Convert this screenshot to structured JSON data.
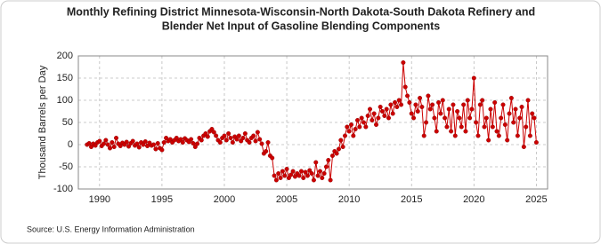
{
  "chart_data": {
    "type": "line",
    "title": [
      "Monthly Refining District Minnesota-Wisconsin-North Dakota-South Dakota Refinery and",
      "Blender Net Input of Gasoline Blending Components"
    ],
    "y_label": "Thousand Barrels per Day",
    "source": "Source: U.S. Energy Information Administration",
    "color": "#cc0000",
    "grid": true,
    "xlim": [
      1988.3,
      2025.9
    ],
    "xticks": [
      1990,
      1995,
      2000,
      2005,
      2010,
      2015,
      2020,
      2025
    ],
    "ylim": [
      -100,
      200
    ],
    "yticks": [
      -100,
      -50,
      0,
      50,
      100,
      150,
      200
    ],
    "x": [
      1989,
      1989.167,
      1989.333,
      1989.5,
      1989.667,
      1989.833,
      1990,
      1990.167,
      1990.333,
      1990.5,
      1990.667,
      1990.833,
      1991,
      1991.167,
      1991.333,
      1991.5,
      1991.667,
      1991.833,
      1992,
      1992.167,
      1992.333,
      1992.5,
      1992.667,
      1992.833,
      1993,
      1993.167,
      1993.333,
      1993.5,
      1993.667,
      1993.833,
      1994,
      1994.167,
      1994.333,
      1994.5,
      1994.667,
      1994.833,
      1995,
      1995.167,
      1995.333,
      1995.5,
      1995.667,
      1995.833,
      1996,
      1996.167,
      1996.333,
      1996.5,
      1996.667,
      1996.833,
      1997,
      1997.167,
      1997.333,
      1997.5,
      1997.667,
      1997.833,
      1998,
      1998.167,
      1998.333,
      1998.5,
      1998.667,
      1998.833,
      1999,
      1999.167,
      1999.333,
      1999.5,
      1999.667,
      1999.833,
      2000,
      2000.167,
      2000.333,
      2000.5,
      2000.667,
      2000.833,
      2001,
      2001.167,
      2001.333,
      2001.5,
      2001.667,
      2001.833,
      2002,
      2002.167,
      2002.333,
      2002.5,
      2002.667,
      2002.833,
      2003,
      2003.167,
      2003.333,
      2003.5,
      2003.667,
      2003.833,
      2004,
      2004.167,
      2004.333,
      2004.5,
      2004.667,
      2004.833,
      2005,
      2005.167,
      2005.333,
      2005.5,
      2005.667,
      2005.833,
      2006,
      2006.167,
      2006.333,
      2006.5,
      2006.667,
      2006.833,
      2007,
      2007.167,
      2007.333,
      2007.5,
      2007.667,
      2007.833,
      2008,
      2008.167,
      2008.333,
      2008.5,
      2008.667,
      2008.833,
      2009,
      2009.167,
      2009.333,
      2009.5,
      2009.667,
      2009.833,
      2010,
      2010.167,
      2010.333,
      2010.5,
      2010.667,
      2010.833,
      2011,
      2011.167,
      2011.333,
      2011.5,
      2011.667,
      2011.833,
      2012,
      2012.167,
      2012.333,
      2012.5,
      2012.667,
      2012.833,
      2013,
      2013.167,
      2013.333,
      2013.5,
      2013.667,
      2013.833,
      2014,
      2014.167,
      2014.333,
      2014.5,
      2014.667,
      2014.833,
      2015,
      2015.167,
      2015.333,
      2015.5,
      2015.667,
      2015.833,
      2016,
      2016.167,
      2016.333,
      2016.5,
      2016.667,
      2016.833,
      2017,
      2017.167,
      2017.333,
      2017.5,
      2017.667,
      2017.833,
      2018,
      2018.167,
      2018.333,
      2018.5,
      2018.667,
      2018.833,
      2019,
      2019.167,
      2019.333,
      2019.5,
      2019.667,
      2019.833,
      2020,
      2020.167,
      2020.333,
      2020.5,
      2020.667,
      2020.833,
      2021,
      2021.167,
      2021.333,
      2021.5,
      2021.667,
      2021.833,
      2022,
      2022.167,
      2022.333,
      2022.5,
      2022.667,
      2022.833,
      2023,
      2023.167,
      2023.333,
      2023.5,
      2023.667,
      2023.833,
      2024,
      2024.167,
      2024.333,
      2024.5,
      2024.667,
      2024.833,
      2025
    ],
    "values": [
      0,
      3,
      -5,
      2,
      -2,
      5,
      8,
      -3,
      2,
      10,
      0,
      -8,
      5,
      -5,
      15,
      2,
      -3,
      4,
      0,
      6,
      -4,
      3,
      8,
      -2,
      2,
      -6,
      5,
      0,
      7,
      -3,
      4,
      -2,
      0,
      -10,
      3,
      -8,
      -12,
      5,
      15,
      8,
      12,
      5,
      10,
      15,
      8,
      12,
      5,
      14,
      10,
      6,
      12,
      3,
      -5,
      2,
      15,
      10,
      20,
      25,
      18,
      30,
      35,
      28,
      20,
      10,
      5,
      15,
      20,
      10,
      25,
      15,
      5,
      18,
      12,
      20,
      8,
      15,
      25,
      10,
      5,
      15,
      20,
      8,
      28,
      12,
      2,
      -20,
      -15,
      5,
      -25,
      -30,
      -70,
      -80,
      -65,
      -75,
      -60,
      -70,
      -55,
      -75,
      -68,
      -60,
      -72,
      -65,
      -70,
      -60,
      -75,
      -62,
      -70,
      -58,
      -65,
      -80,
      -40,
      -70,
      -60,
      -75,
      -65,
      -50,
      -35,
      -80,
      -25,
      -15,
      -20,
      -10,
      10,
      -5,
      20,
      40,
      30,
      45,
      20,
      35,
      55,
      40,
      60,
      50,
      40,
      65,
      80,
      55,
      70,
      45,
      60,
      85,
      75,
      65,
      80,
      60,
      90,
      70,
      95,
      85,
      100,
      90,
      185,
      130,
      110,
      95,
      70,
      60,
      90,
      75,
      105,
      85,
      20,
      50,
      110,
      80,
      90,
      60,
      30,
      95,
      70,
      100,
      60,
      40,
      80,
      30,
      90,
      20,
      75,
      60,
      40,
      90,
      30,
      100,
      60,
      80,
      150,
      50,
      20,
      90,
      100,
      40,
      60,
      10,
      80,
      40,
      95,
      30,
      20,
      60,
      90,
      45,
      10,
      70,
      105,
      50,
      80,
      20,
      60,
      85,
      -5,
      40,
      100,
      20,
      70,
      60,
      5
    ]
  }
}
